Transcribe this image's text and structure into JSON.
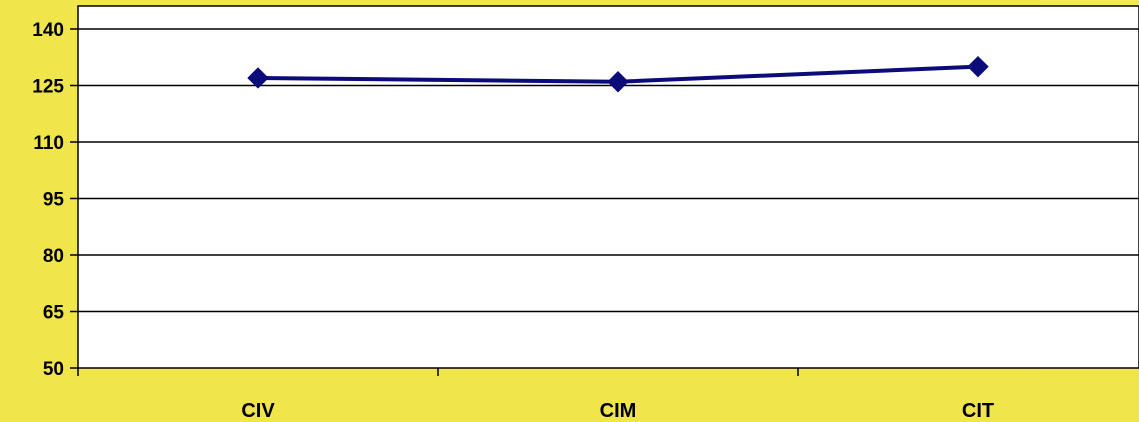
{
  "chart_data": {
    "type": "line",
    "categories": [
      "CIV",
      "CIM",
      "CIT"
    ],
    "series": [
      {
        "values": [
          127,
          126,
          130
        ]
      }
    ],
    "yticks": [
      "50",
      "65",
      "80",
      "95",
      "110",
      "125",
      "140"
    ],
    "ylim": [
      50,
      140
    ],
    "grid": true,
    "legend": "none",
    "colors": {
      "line": "#0b0b7a",
      "marker": "#0b0b7a",
      "plot_background": "#ffffff",
      "page_background": "#f0e54a",
      "grid": "#000000"
    },
    "marker": "diamond-icon"
  }
}
